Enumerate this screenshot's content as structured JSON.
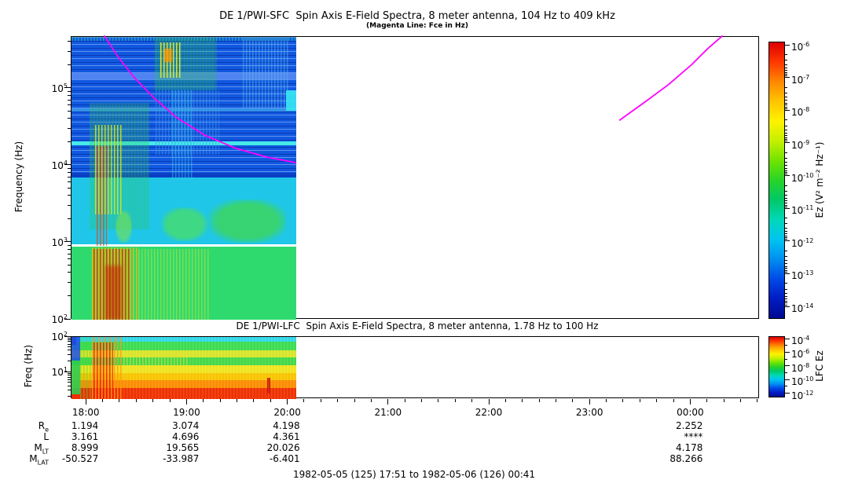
{
  "header": {
    "title": "DE 1/PWI-SFC  Spin Axis E-Field Spectra, 8 meter antenna, 104 Hz to 409 kHz",
    "subtitle": "(Magenta Line: Fce in Hz)"
  },
  "footer": "1982-05-05 (125) 17:51 to 1982-05-06 (126) 00:41",
  "x_axis": {
    "start_label": "17:51",
    "end_label": "00:41",
    "total_minutes": 410,
    "minor_step_minutes": 10,
    "hours": [
      {
        "label": "18:00",
        "t": 9
      },
      {
        "label": "19:00",
        "t": 69
      },
      {
        "label": "20:00",
        "t": 129
      },
      {
        "label": "21:00",
        "t": 189
      },
      {
        "label": "22:00",
        "t": 249
      },
      {
        "label": "23:00",
        "t": 309
      },
      {
        "label": "00:00",
        "t": 369
      }
    ]
  },
  "ephemeris": {
    "rows": [
      {
        "label": "R",
        "sub": "e",
        "values": [
          "1.194",
          "3.074",
          "4.198",
          "",
          "",
          "",
          "2.252"
        ]
      },
      {
        "label": "L",
        "sub": "",
        "values": [
          "3.161",
          "4.696",
          "4.361",
          "",
          "",
          "",
          "****"
        ]
      },
      {
        "label": "M",
        "sub": "LT",
        "values": [
          "8.999",
          "19.565",
          "20.026",
          "",
          "",
          "",
          "4.178"
        ]
      },
      {
        "label": "M",
        "sub": "LAT",
        "values": [
          "-50.527",
          "-33.987",
          "-6.401",
          "",
          "",
          "",
          "88.266"
        ]
      }
    ]
  },
  "chart_data": [
    {
      "type": "heatmap",
      "instrument": "DE 1/PWI-SFC",
      "title": "DE 1/PWI-SFC  Spin Axis E-Field Spectra, 8 meter antenna, 104 Hz to 409 kHz",
      "subtitle": "(Magenta Line: Fce in Hz)",
      "ylabel": "Frequency (Hz)",
      "ylim_hz": [
        100,
        470000
      ],
      "stated_range": "104 Hz to 409 kHz",
      "ytick_exponents": [
        2,
        3,
        4,
        5
      ],
      "time_span": "1982-05-05 17:51 to 1982-05-06 00:41",
      "data_end_minute": 134,
      "colorbar": {
        "label": "Ez (V² m⁻² Hz⁻¹)",
        "tick_exponents": [
          -6,
          -7,
          -8,
          -9,
          -10,
          -11,
          -12,
          -13,
          -14
        ],
        "colors": [
          "#dc0000",
          "#ff3800",
          "#ff8800",
          "#ffc400",
          "#fff200",
          "#c4f000",
          "#70e400",
          "#28d428",
          "#00c868",
          "#00d8b8",
          "#00c4f0",
          "#0090f0",
          "#004ae8",
          "#001cc4",
          "#000a90"
        ]
      },
      "background_regions": [
        {
          "f": [
            7000,
            470000
          ],
          "color": "#1158e0",
          "stripes": true
        },
        {
          "f": [
            950,
            7000
          ],
          "color": "#1fc6e8"
        },
        {
          "f": [
            880,
            950
          ],
          "color": "#ffffff"
        },
        {
          "f": [
            100,
            880
          ],
          "color": "#2eda6e"
        }
      ],
      "features": [
        {
          "t": [
            0,
            134
          ],
          "f": [
            420000,
            470000
          ],
          "tex": "vstreaks",
          "color": "#2fd3a0",
          "opacity": 0.55
        },
        {
          "t": [
            0,
            134
          ],
          "f": [
            128000,
            158000
          ],
          "tex": "flat",
          "color": "#5b8df5",
          "opacity": 0.85
        },
        {
          "t": [
            0,
            134
          ],
          "f": [
            50000,
            56000
          ],
          "tex": "flat",
          "color": "#49b8f0",
          "opacity": 0.6
        },
        {
          "t": [
            0,
            134
          ],
          "f": [
            18200,
            20500
          ],
          "tex": "flat",
          "color": "#49f0e8",
          "opacity": 0.95
        },
        {
          "t": [
            0,
            134
          ],
          "f": [
            7000,
            8000
          ],
          "tex": "flat",
          "color": "#0a3cc0",
          "opacity": 0.8
        },
        {
          "t": [
            50,
            86
          ],
          "f": [
            95000,
            460000
          ],
          "tex": "vstreaks",
          "color": "#27c84a",
          "opacity": 0.85,
          "blur": 1
        },
        {
          "t": [
            53,
            66
          ],
          "f": [
            140000,
            400000
          ],
          "tex": "vstreaks",
          "color": "#f2ee1e",
          "opacity": 0.9
        },
        {
          "t": [
            55,
            60
          ],
          "f": [
            220000,
            330000
          ],
          "tex": "flat",
          "color": "#ff9a00",
          "opacity": 0.8,
          "blur": 1
        },
        {
          "t": [
            50,
            88
          ],
          "f": [
            14000,
            95000
          ],
          "tex": "vstreaks",
          "color": "#3f9ae8",
          "opacity": 0.5
        },
        {
          "t": [
            60,
            73
          ],
          "f": [
            6500,
            95000
          ],
          "tex": "vstreaks",
          "color": "#35c8e8",
          "opacity": 0.5
        },
        {
          "t": [
            102,
            129
          ],
          "f": [
            55000,
            460000
          ],
          "tex": "vstreaks",
          "color": "#57b8ea",
          "opacity": 0.5
        },
        {
          "t": [
            128,
            134
          ],
          "f": [
            52000,
            95000
          ],
          "tex": "flat",
          "color": "#38e2f2",
          "opacity": 0.95
        },
        {
          "t": [
            11,
            47
          ],
          "f": [
            1500,
            65000
          ],
          "tex": "vstreaks",
          "color": "#2fc455",
          "opacity": 0.8,
          "blur": 1
        },
        {
          "t": [
            14,
            31
          ],
          "f": [
            2300,
            34000
          ],
          "tex": "vstreaks",
          "color": "#d8e81e",
          "opacity": 0.85
        },
        {
          "t": [
            15,
            21
          ],
          "f": [
            900,
            18000
          ],
          "tex": "vstreaks",
          "color": "#ee3c10",
          "opacity": 0.7
        },
        {
          "t": [
            26,
            36
          ],
          "f": [
            1000,
            2600
          ],
          "tex": "blob",
          "color": "#7ae24a",
          "opacity": 0.6
        },
        {
          "t": [
            54,
            81
          ],
          "f": [
            1050,
            2900
          ],
          "tex": "blob",
          "color": "#4ade62",
          "opacity": 0.75
        },
        {
          "t": [
            82,
            128
          ],
          "f": [
            1000,
            3600
          ],
          "tex": "blob",
          "color": "#3cd65e",
          "opacity": 0.85
        },
        {
          "t": [
            12,
            40
          ],
          "f": [
            100,
            860
          ],
          "tex": "vstreaks",
          "color": "#ffb400",
          "opacity": 0.9
        },
        {
          "t": [
            13,
            35
          ],
          "f": [
            100,
            820
          ],
          "tex": "vstreaks",
          "color": "#e82a00",
          "opacity": 0.85
        },
        {
          "t": [
            40,
            83
          ],
          "f": [
            100,
            830
          ],
          "tex": "vstreaks",
          "color": "#b4e03c",
          "opacity": 0.6
        },
        {
          "t": [
            20,
            30
          ],
          "f": [
            100,
            500
          ],
          "tex": "flat",
          "color": "#cc1800",
          "opacity": 0.5,
          "blur": 2
        }
      ],
      "fce_line": {
        "color": "#ff00ff",
        "label": "Fce in Hz",
        "segments": [
          [
            [
              20.1,
              471000
            ],
            [
              28.1,
              256000
            ],
            [
              37.5,
              139000
            ],
            [
              49.2,
              75500
            ],
            [
              63.3,
              40900
            ],
            [
              79.7,
              24400
            ],
            [
              98.4,
              16400
            ],
            [
              117.1,
              12600
            ],
            [
              134,
              10700
            ]
          ],
          [
            [
              327,
              38200
            ],
            [
              342,
              65500
            ],
            [
              356,
              110000
            ],
            [
              370,
              202000
            ],
            [
              379.5,
              324000
            ],
            [
              388,
              471000
            ]
          ]
        ]
      }
    },
    {
      "type": "heatmap",
      "instrument": "DE 1/PWI-LFC",
      "title": "DE 1/PWI-LFC  Spin Axis E-Field Spectra, 8 meter antenna, 1.78 Hz to 100 Hz",
      "ylabel": "Freq (Hz)",
      "ylim_hz": [
        1.78,
        100
      ],
      "stated_range": "1.78 Hz to 100 Hz",
      "ytick_exponents": [
        1,
        2
      ],
      "data_end_minute": 134,
      "colorbar": {
        "label": "LFC Ez",
        "tick_exponents": [
          -4,
          -6,
          -8,
          -10,
          -12
        ],
        "colors": [
          "#dc0000",
          "#ff3800",
          "#ff8800",
          "#ffc400",
          "#fff200",
          "#c4f000",
          "#70e400",
          "#28d428",
          "#00c868",
          "#00d8b8",
          "#00c4f0",
          "#0090f0",
          "#004ae8",
          "#001cc4",
          "#000a90"
        ]
      },
      "background_regions": [
        {
          "f": [
            73,
            100
          ],
          "color": "#2fd8e8"
        },
        {
          "f": [
            43,
            73
          ],
          "color": "#3cdc50"
        },
        {
          "f": [
            26,
            43
          ],
          "color": "#d8e42a"
        },
        {
          "f": [
            16,
            26
          ],
          "color": "#44d848"
        },
        {
          "f": [
            9.5,
            16
          ],
          "color": "#f0e41e"
        },
        {
          "f": [
            6,
            9.5
          ],
          "color": "#f8c400"
        },
        {
          "f": [
            3.6,
            6
          ],
          "color": "#fb8c00"
        },
        {
          "f": [
            1.78,
            3.6
          ],
          "color": "#ee3000"
        }
      ],
      "features": [
        {
          "t": [
            0,
            3
          ],
          "f": [
            60,
            100
          ],
          "tex": "flat",
          "color": "#0828a0",
          "opacity": 0.9
        },
        {
          "t": [
            0,
            5
          ],
          "f": [
            22,
            100
          ],
          "tex": "flat",
          "color": "#2050e8",
          "opacity": 0.85
        },
        {
          "t": [
            0,
            5
          ],
          "f": [
            2.4,
            22
          ],
          "tex": "flat",
          "color": "#30cc50",
          "opacity": 0.9
        },
        {
          "t": [
            5,
            12
          ],
          "f": [
            1.78,
            100
          ],
          "tex": "vstreaks",
          "color": "#50d848",
          "opacity": 0.5
        },
        {
          "t": [
            12,
            31
          ],
          "f": [
            1.78,
            100
          ],
          "tex": "vstreaks",
          "color": "#ff8800",
          "opacity": 0.8
        },
        {
          "t": [
            13,
            25
          ],
          "f": [
            1.78,
            70
          ],
          "tex": "vstreaks",
          "color": "#e82000",
          "opacity": 0.9
        },
        {
          "t": [
            31,
            70
          ],
          "f": [
            10,
            43
          ],
          "tex": "vstreaks",
          "color": "#e8e020",
          "opacity": 0.45
        },
        {
          "t": [
            116.5,
            118.2
          ],
          "f": [
            2.6,
            7
          ],
          "tex": "flat",
          "color": "#cc1400",
          "opacity": 0.9
        },
        {
          "t": [
            12,
            134
          ],
          "f": [
            1.78,
            100
          ],
          "tex": "vstreaks",
          "color": "#ffffff",
          "opacity": 0.12
        }
      ]
    }
  ]
}
